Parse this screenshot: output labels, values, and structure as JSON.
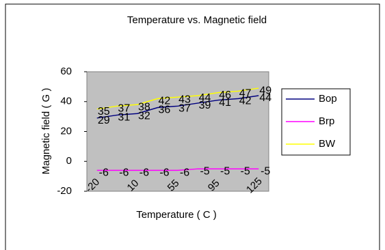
{
  "chart_data": {
    "type": "line",
    "title": "Temperature vs. Magnetic field",
    "x_label": "Temperature ( C )",
    "y_label": "Magnetic field ( G )",
    "categories": [
      "-20",
      null,
      "10",
      null,
      "55",
      null,
      "95",
      null,
      "125"
    ],
    "series": [
      {
        "name": "Bop",
        "color": "#000080",
        "values": [
          29,
          31,
          32,
          36,
          37,
          39,
          41,
          42,
          44
        ]
      },
      {
        "name": "Brp",
        "color": "#ff00ff",
        "values": [
          -6,
          -6,
          -6,
          -6,
          -6,
          -5,
          -5,
          -5,
          -5
        ]
      },
      {
        "name": "BW",
        "color": "#ffff00",
        "values": [
          35,
          37,
          38,
          42,
          43,
          44,
          46,
          47,
          49
        ]
      }
    ],
    "ylim": [
      -20,
      60
    ],
    "yticks": [
      -20,
      0,
      20,
      40,
      60
    ],
    "plot_background": "#c0c0c0",
    "legend": "right"
  }
}
